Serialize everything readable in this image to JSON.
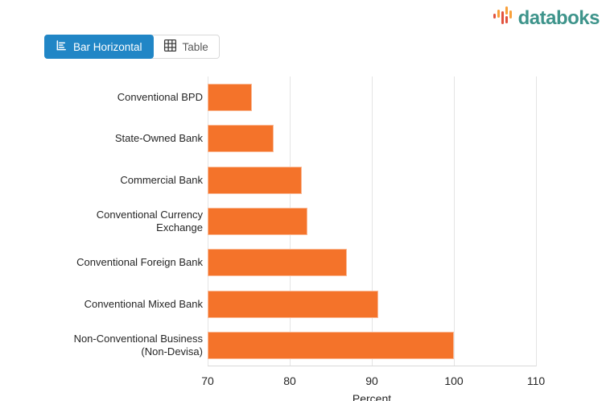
{
  "logo": {
    "text": "databoks",
    "brand_color": "#3E948B",
    "icon_orange": "#F9A03A",
    "icon_red": "#E2533F"
  },
  "toolbar": {
    "bar_horizontal_label": "Bar Horizontal",
    "table_label": "Table",
    "active_button_color": "#2186C6"
  },
  "chart_data": {
    "type": "bar",
    "orientation": "horizontal",
    "categories": [
      "Conventional BPD",
      "State-Owned Bank",
      "Commercial Bank",
      "Conventional Currency Exchange",
      "Conventional Foreign Bank",
      "Conventional Mixed Bank",
      "Non-Conventional Business (Non-Devisa)"
    ],
    "values": [
      75.4,
      78,
      81.5,
      82.2,
      87,
      90.8,
      100
    ],
    "xlabel": "Percent",
    "xlim": [
      70,
      110
    ],
    "xticks": [
      70,
      80,
      90,
      100,
      110
    ],
    "bar_color": "#F4732A",
    "grid": true,
    "legend": false
  }
}
